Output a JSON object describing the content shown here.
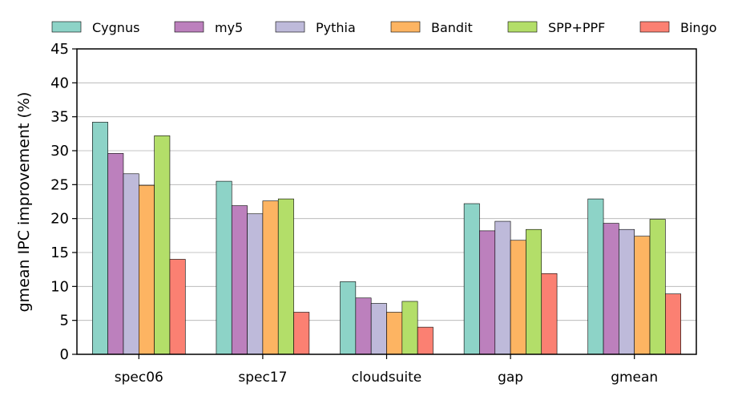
{
  "chart_data": {
    "type": "bar",
    "title": "",
    "xlabel": "",
    "ylabel": "gmean IPC improvement (%)",
    "ylim": [
      0,
      45
    ],
    "yticks": [
      0,
      5,
      10,
      15,
      20,
      25,
      30,
      35,
      40,
      45
    ],
    "grid": "horizontal",
    "legend_position": "top",
    "categories": [
      "spec06",
      "spec17",
      "cloudsuite",
      "gap",
      "gmean"
    ],
    "series": [
      {
        "name": "Cygnus",
        "color": "#8dd3c7",
        "values": [
          34.2,
          25.5,
          10.7,
          22.2,
          22.9
        ]
      },
      {
        "name": "my5",
        "color": "#bc80bd",
        "values": [
          29.6,
          21.9,
          8.3,
          18.2,
          19.3
        ]
      },
      {
        "name": "Pythia",
        "color": "#bebada",
        "values": [
          26.6,
          20.7,
          7.5,
          19.6,
          18.4
        ]
      },
      {
        "name": "Bandit",
        "color": "#fdb462",
        "values": [
          24.9,
          22.6,
          6.2,
          16.8,
          17.4
        ]
      },
      {
        "name": "SPP+PPF",
        "color": "#b3de69",
        "values": [
          32.2,
          22.9,
          7.8,
          18.4,
          19.9
        ]
      },
      {
        "name": "Bingo",
        "color": "#fb8072",
        "values": [
          14.0,
          6.2,
          4.0,
          11.9,
          8.9
        ]
      }
    ]
  }
}
